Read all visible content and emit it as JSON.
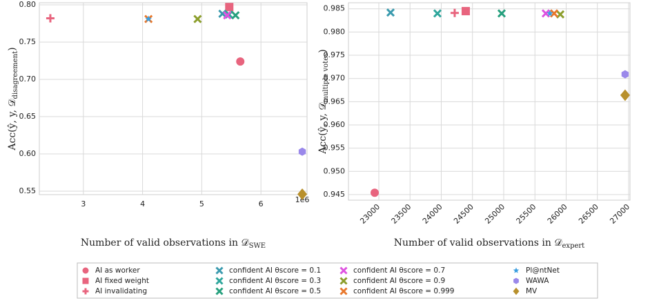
{
  "chart_data": [
    {
      "type": "scatter",
      "xlabel": [
        "Number of valid observations in 𝒟",
        "SWE"
      ],
      "ylabel": [
        "Acc(ŷ, y, 𝒟",
        "disagreement",
        ")"
      ],
      "offset_label": "1e6",
      "xlim": [
        2.256,
        6.779
      ],
      "ylim": [
        0.5454,
        0.8028
      ],
      "xticks": [
        3,
        4,
        5,
        6
      ],
      "yticks": [
        0.55,
        {
          "value": 0.6,
          "label": "0.60"
        },
        0.65,
        {
          "value": 0.7,
          "label": "0.70"
        },
        0.75,
        {
          "value": 0.8,
          "label": "0.80"
        }
      ],
      "grid": true,
      "series": [
        {
          "name": "AI as worker",
          "color": "#e8647e",
          "marker": "circle",
          "x": [
            5.651
          ],
          "values": [
            0.724
          ]
        },
        {
          "name": "AI fixed weight",
          "color": "#e8647e",
          "marker": "square",
          "x": [
            5.465
          ],
          "values": [
            0.797
          ]
        },
        {
          "name": "AI invalidating",
          "color": "#e8647e",
          "marker": "plus",
          "x": [
            2.442
          ],
          "values": [
            0.782
          ]
        },
        {
          "name": "confident AI θscore = 0.1",
          "color": "#3a9aae",
          "marker": "x",
          "x": [
            5.35
          ],
          "values": [
            0.788
          ]
        },
        {
          "name": "confident AI θscore = 0.3",
          "color": "#2ea69c",
          "marker": "x",
          "x": [
            5.46
          ],
          "values": [
            0.787
          ]
        },
        {
          "name": "confident AI θscore = 0.5",
          "color": "#26a07e",
          "marker": "x",
          "x": [
            5.57
          ],
          "values": [
            0.786
          ]
        },
        {
          "name": "confident AI θscore = 0.7",
          "color": "#de52e0",
          "marker": "x",
          "x": [
            5.43
          ],
          "values": [
            0.786
          ]
        },
        {
          "name": "confident AI θscore = 0.9",
          "color": "#8c9e2c",
          "marker": "x",
          "x": [
            4.93
          ],
          "values": [
            0.781
          ]
        },
        {
          "name": "confident AI θscore = 0.999",
          "color": "#e8782c",
          "marker": "x",
          "x": [
            4.1
          ],
          "values": [
            0.781
          ]
        },
        {
          "name": "Pl@ntNet",
          "color": "#3a9ee0",
          "marker": "star",
          "x": [
            4.1
          ],
          "values": [
            0.781
          ]
        },
        {
          "name": "WAWA",
          "color": "#9a88ea",
          "marker": "hexagon",
          "x": [
            6.698
          ],
          "values": [
            0.603
          ]
        },
        {
          "name": "MV",
          "color": "#b8902c",
          "marker": "diamond",
          "x": [
            6.698
          ],
          "values": [
            0.546
          ]
        }
      ]
    },
    {
      "type": "scatter",
      "xlabel": [
        "Number of valid observations in 𝒟",
        "expert"
      ],
      "ylabel": [
        "Acc(ŷ, y, 𝒟",
        "multiple votes",
        ")"
      ],
      "xlim": [
        22514,
        27022
      ],
      "ylim": [
        0.9438,
        0.9863
      ],
      "xticks": [
        23000,
        23500,
        24000,
        24500,
        25000,
        25500,
        26000,
        26500,
        27000
      ],
      "yticks": [
        0.945,
        {
          "value": 0.95,
          "label": "0.950"
        },
        0.955,
        {
          "value": 0.96,
          "label": "0.960"
        },
        0.965,
        {
          "value": 0.97,
          "label": "0.970"
        },
        0.975,
        {
          "value": 0.98,
          "label": "0.980"
        },
        0.985
      ],
      "grid": true,
      "series": [
        {
          "name": "AI as worker",
          "color": "#e8647e",
          "marker": "circle",
          "x": [
            22934
          ],
          "values": [
            0.9454
          ]
        },
        {
          "name": "AI fixed weight",
          "color": "#e8647e",
          "marker": "square",
          "x": [
            24392
          ],
          "values": [
            0.9845
          ]
        },
        {
          "name": "AI invalidating",
          "color": "#e8647e",
          "marker": "plus",
          "x": [
            24215
          ],
          "values": [
            0.9841
          ]
        },
        {
          "name": "confident AI θscore = 0.1",
          "color": "#3a9aae",
          "marker": "x",
          "x": [
            23188
          ],
          "values": [
            0.9842
          ]
        },
        {
          "name": "confident AI θscore = 0.3",
          "color": "#2ea69c",
          "marker": "x",
          "x": [
            23939
          ],
          "values": [
            0.984
          ]
        },
        {
          "name": "confident AI θscore = 0.5",
          "color": "#26a07e",
          "marker": "x",
          "x": [
            24967
          ],
          "values": [
            0.984
          ]
        },
        {
          "name": "confident AI θscore = 0.7",
          "color": "#de52e0",
          "marker": "x",
          "x": [
            25674
          ],
          "values": [
            0.984
          ]
        },
        {
          "name": "confident AI θscore = 0.9",
          "color": "#8c9e2c",
          "marker": "x",
          "x": [
            25906
          ],
          "values": [
            0.9838
          ]
        },
        {
          "name": "confident AI θscore = 0.999",
          "color": "#e8782c",
          "marker": "x",
          "x": [
            25807
          ],
          "values": [
            0.984
          ]
        },
        {
          "name": "Pl@ntNet",
          "color": "#3a9ee0",
          "marker": "star",
          "x": [
            25740
          ],
          "values": [
            0.984
          ]
        },
        {
          "name": "WAWA",
          "color": "#9a88ea",
          "marker": "hexagon",
          "x": [
            26944
          ],
          "values": [
            0.9709
          ]
        },
        {
          "name": "MV",
          "color": "#b8902c",
          "marker": "diamond",
          "x": [
            26944
          ],
          "values": [
            0.9664
          ]
        }
      ]
    }
  ]
}
